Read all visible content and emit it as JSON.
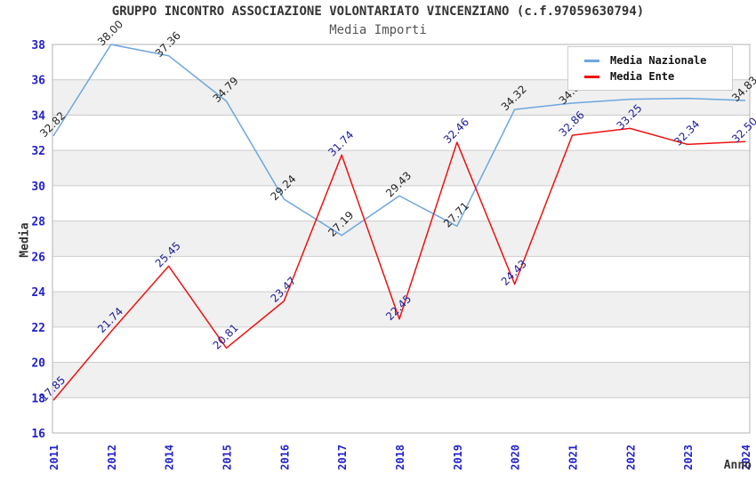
{
  "title": "GRUPPO INCONTRO ASSOCIAZIONE VOLONTARIATO VINCENZIANO (c.f.97059630794)",
  "subtitle": "Media Importi",
  "axes": {
    "y_label": "Media",
    "x_label": "Anno"
  },
  "colors": {
    "title": "#333333",
    "subtitle": "#555555",
    "axis_name": "#333333",
    "tick_blue": "#2222CE",
    "blue_line": "#6CA6E0",
    "red_line": "#EE1111",
    "blue_label": "#262626",
    "red_label": "#202099",
    "band_gray": "#F0F0F0",
    "band_white": "#FFFFFF",
    "grid": "#CCCCCC",
    "border": "#B3B3B3",
    "legend_bg": "#FFFFFF",
    "legend_border": "#CCCCCC",
    "legend_text": "#111111"
  },
  "chart_data": {
    "type": "line",
    "title": "GRUPPO INCONTRO ASSOCIAZIONE VOLONTARIATO VINCENZIANO (c.f.97059630794)",
    "subtitle": "Media Importi",
    "xlabel": "Anno",
    "ylabel": "Media",
    "ylim": [
      16,
      38
    ],
    "ytick_step": 2,
    "grid": "horizontal-bands-alternating",
    "legend_position": "top-right",
    "categories": [
      "2011",
      "2012",
      "2014",
      "2015",
      "2016",
      "2017",
      "2018",
      "2019",
      "2020",
      "2021",
      "2022",
      "2023",
      "2024"
    ],
    "series": [
      {
        "name": "Media Nazionale",
        "color": "#6CA6E0",
        "label_color": "#262626",
        "values": [
          32.82,
          38.0,
          37.36,
          34.79,
          29.24,
          27.19,
          29.43,
          27.71,
          34.32,
          34.68,
          34.9,
          34.95,
          34.83
        ],
        "labels": [
          "32.82",
          "38.00",
          "37.36",
          "34.79",
          "29.24",
          "27.19",
          "29.43",
          "27.71",
          "34.32",
          "34.68",
          "",
          "",
          "34.83"
        ]
      },
      {
        "name": "Media Ente",
        "color": "#EE1111",
        "label_color": "#202099",
        "values": [
          17.85,
          21.74,
          25.45,
          20.81,
          23.47,
          31.74,
          22.45,
          32.46,
          24.43,
          32.86,
          33.25,
          32.34,
          32.5
        ],
        "labels": [
          "17.85",
          "21.74",
          "25.45",
          "20.81",
          "23.47",
          "31.74",
          "22.45",
          "32.46",
          "24.43",
          "32.86",
          "33.25",
          "32.34",
          "32.50"
        ]
      }
    ]
  }
}
